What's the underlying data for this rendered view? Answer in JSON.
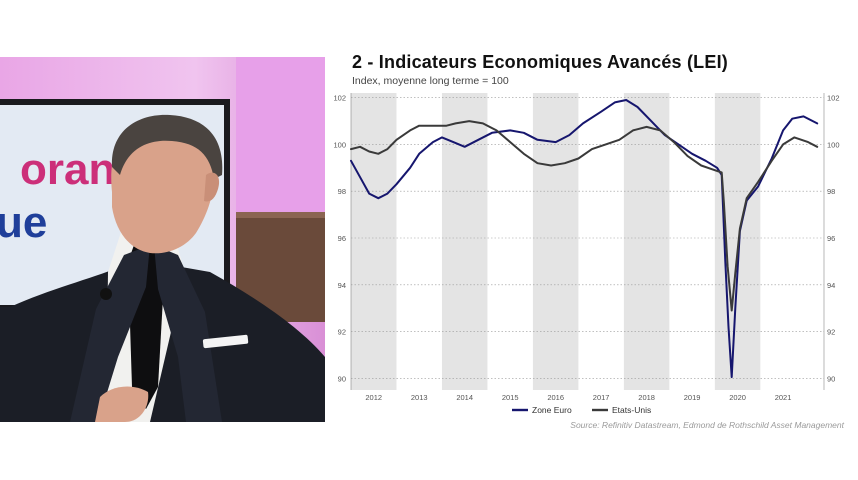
{
  "video": {
    "backdrop_text_top": "oran",
    "backdrop_text_bottom": "ue"
  },
  "chart_data": {
    "type": "line",
    "title": "2 - Indicateurs Economiques Avancés (LEI)",
    "subtitle": "Index, moyenne long terme = 100",
    "source": "Source: Refinitiv Datastream, Edmond de Rothschild Asset Management",
    "xlim": [
      2011.5,
      2021.9
    ],
    "ylim": [
      89.5,
      102.2
    ],
    "yticks": [
      90,
      92,
      94,
      96,
      98,
      100,
      102
    ],
    "x_tick_labels": [
      {
        "label": "2012",
        "x": 2012.0
      },
      {
        "label": "2013",
        "x": 2013.0
      },
      {
        "label": "2014",
        "x": 2014.0
      },
      {
        "label": "2015",
        "x": 2015.0
      },
      {
        "label": "2016",
        "x": 2016.0
      },
      {
        "label": "2017",
        "x": 2017.0
      },
      {
        "label": "2018",
        "x": 2018.0
      },
      {
        "label": "2019",
        "x": 2019.0
      },
      {
        "label": "2020",
        "x": 2020.0
      },
      {
        "label": "2021",
        "x": 2021.0
      }
    ],
    "shaded_years": [
      [
        2011.5,
        2012.5
      ],
      [
        2013.5,
        2014.5
      ],
      [
        2015.5,
        2016.5
      ],
      [
        2017.5,
        2018.5
      ],
      [
        2019.5,
        2020.5
      ]
    ],
    "grid": "horizontal-dotted",
    "legend_position": "bottom-center",
    "series": [
      {
        "name": "Zone Euro",
        "color": "#16166e",
        "points": [
          [
            2011.5,
            99.3
          ],
          [
            2011.7,
            98.6
          ],
          [
            2011.9,
            97.9
          ],
          [
            2012.1,
            97.7
          ],
          [
            2012.3,
            97.9
          ],
          [
            2012.5,
            98.3
          ],
          [
            2012.8,
            99.0
          ],
          [
            2013.0,
            99.6
          ],
          [
            2013.3,
            100.1
          ],
          [
            2013.5,
            100.3
          ],
          [
            2013.75,
            100.1
          ],
          [
            2014.0,
            99.9
          ],
          [
            2014.3,
            100.2
          ],
          [
            2014.6,
            100.5
          ],
          [
            2015.0,
            100.6
          ],
          [
            2015.3,
            100.5
          ],
          [
            2015.6,
            100.2
          ],
          [
            2016.0,
            100.1
          ],
          [
            2016.3,
            100.4
          ],
          [
            2016.6,
            100.9
          ],
          [
            2017.0,
            101.4
          ],
          [
            2017.3,
            101.8
          ],
          [
            2017.55,
            101.9
          ],
          [
            2017.8,
            101.6
          ],
          [
            2018.1,
            101.0
          ],
          [
            2018.4,
            100.4
          ],
          [
            2018.7,
            100.0
          ],
          [
            2019.0,
            99.6
          ],
          [
            2019.3,
            99.3
          ],
          [
            2019.55,
            99.0
          ],
          [
            2019.65,
            98.7
          ],
          [
            2019.73,
            95.0
          ],
          [
            2019.8,
            92.2
          ],
          [
            2019.87,
            90.05
          ],
          [
            2019.95,
            93.0
          ],
          [
            2020.05,
            96.3
          ],
          [
            2020.2,
            97.6
          ],
          [
            2020.45,
            98.2
          ],
          [
            2020.75,
            99.4
          ],
          [
            2021.0,
            100.6
          ],
          [
            2021.2,
            101.1
          ],
          [
            2021.45,
            101.2
          ],
          [
            2021.75,
            100.9
          ]
        ]
      },
      {
        "name": "Etats-Unis",
        "color": "#3a3a3a",
        "points": [
          [
            2011.5,
            99.8
          ],
          [
            2011.7,
            99.9
          ],
          [
            2011.9,
            99.7
          ],
          [
            2012.1,
            99.6
          ],
          [
            2012.3,
            99.8
          ],
          [
            2012.5,
            100.2
          ],
          [
            2012.8,
            100.6
          ],
          [
            2013.0,
            100.8
          ],
          [
            2013.3,
            100.8
          ],
          [
            2013.6,
            100.8
          ],
          [
            2013.8,
            100.9
          ],
          [
            2014.1,
            101.0
          ],
          [
            2014.4,
            100.9
          ],
          [
            2014.7,
            100.6
          ],
          [
            2015.0,
            100.1
          ],
          [
            2015.3,
            99.6
          ],
          [
            2015.6,
            99.2
          ],
          [
            2015.9,
            99.1
          ],
          [
            2016.2,
            99.2
          ],
          [
            2016.5,
            99.4
          ],
          [
            2016.8,
            99.8
          ],
          [
            2017.1,
            100.0
          ],
          [
            2017.4,
            100.2
          ],
          [
            2017.7,
            100.6
          ],
          [
            2018.0,
            100.75
          ],
          [
            2018.3,
            100.6
          ],
          [
            2018.6,
            100.1
          ],
          [
            2018.9,
            99.5
          ],
          [
            2019.2,
            99.1
          ],
          [
            2019.5,
            98.9
          ],
          [
            2019.65,
            98.8
          ],
          [
            2019.7,
            97.5
          ],
          [
            2019.78,
            94.8
          ],
          [
            2019.87,
            92.9
          ],
          [
            2019.95,
            94.5
          ],
          [
            2020.05,
            96.4
          ],
          [
            2020.2,
            97.7
          ],
          [
            2020.45,
            98.4
          ],
          [
            2020.75,
            99.3
          ],
          [
            2021.0,
            100.0
          ],
          [
            2021.25,
            100.3
          ],
          [
            2021.55,
            100.1
          ],
          [
            2021.75,
            99.9
          ]
        ]
      }
    ]
  }
}
